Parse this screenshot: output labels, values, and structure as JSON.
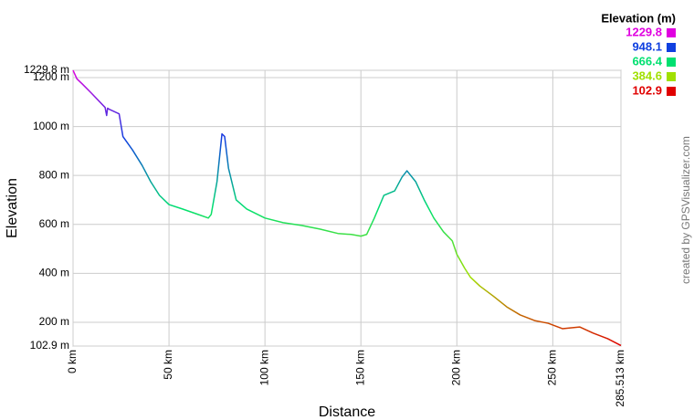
{
  "chart_data": {
    "type": "line",
    "xlabel": "Distance",
    "ylabel": "Elevation",
    "credit": "created by GPSVisualizer.com",
    "legend": {
      "title": "Elevation (m)",
      "position": "top-right",
      "entries": [
        {
          "value": 1229.8,
          "color": "#e000e0"
        },
        {
          "value": 948.1,
          "color": "#1040e0"
        },
        {
          "value": 666.4,
          "color": "#00e070"
        },
        {
          "value": 384.6,
          "color": "#a0e000"
        },
        {
          "value": 102.9,
          "color": "#e00000"
        }
      ]
    },
    "x": [
      0,
      2,
      4.8,
      9.5,
      16.7,
      17.5,
      18,
      19,
      24,
      26,
      31,
      36,
      40.5,
      45,
      50,
      57,
      64,
      70.5,
      72,
      75,
      77.6,
      79,
      81,
      85,
      90.5,
      100,
      109.5,
      119,
      128.6,
      138,
      145,
      150,
      153,
      157,
      162,
      167.6,
      171.4,
      174,
      178.6,
      183,
      188,
      193,
      197.6,
      200,
      204,
      207,
      212,
      219,
      226,
      233,
      240.5,
      247.6,
      255,
      264,
      271,
      278.6,
      285.513
    ],
    "values": [
      1229.8,
      1195,
      1174,
      1137,
      1078,
      1045,
      1075,
      1070,
      1052,
      959,
      904,
      841,
      774,
      719,
      681,
      663,
      644,
      626,
      641,
      774,
      970,
      959,
      830,
      700,
      663,
      626,
      607,
      596,
      581,
      563,
      559,
      552,
      559,
      626,
      719,
      737,
      793,
      819,
      774,
      700,
      626,
      570,
      533,
      478,
      422,
      385,
      348,
      307,
      263,
      230,
      207,
      196,
      174,
      181,
      156,
      133,
      105
    ],
    "xlim": [
      0,
      285.513
    ],
    "ylim": [
      102.9,
      1229.8
    ],
    "xticks": [
      {
        "value": 0,
        "label": "0 km"
      },
      {
        "value": 50,
        "label": "50 km"
      },
      {
        "value": 100,
        "label": "100 km"
      },
      {
        "value": 150,
        "label": "150 km"
      },
      {
        "value": 200,
        "label": "200 km"
      },
      {
        "value": 250,
        "label": "250 km"
      },
      {
        "value": 285.513,
        "label": "285.513 km"
      }
    ],
    "yticks": [
      {
        "value": 102.9,
        "label": "102.9 m"
      },
      {
        "value": 200,
        "label": "200 m"
      },
      {
        "value": 400,
        "label": "400 m"
      },
      {
        "value": 600,
        "label": "600 m"
      },
      {
        "value": 800,
        "label": "800 m"
      },
      {
        "value": 1000,
        "label": "1000 m"
      },
      {
        "value": 1200,
        "label": "1200 m"
      },
      {
        "value": 1229.8,
        "label": "1229.8 m"
      }
    ],
    "grid": true
  }
}
